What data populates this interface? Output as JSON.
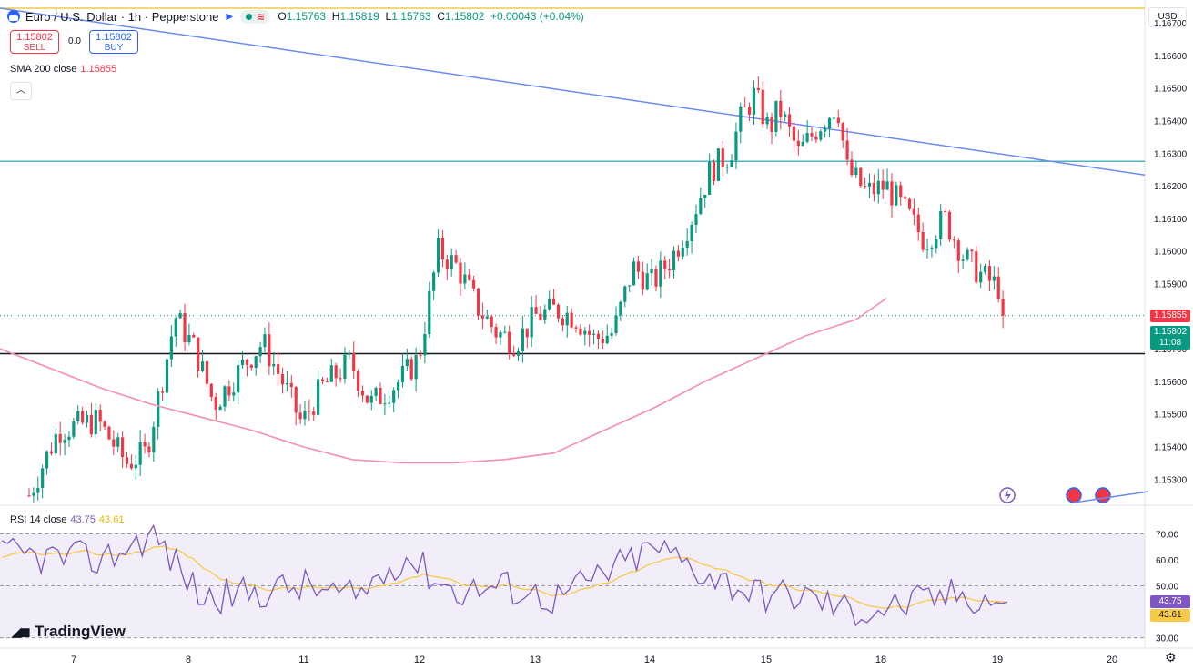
{
  "header": {
    "title": "Euro / U.S. Dollar · 1h · Pepperstone",
    "ohlc": {
      "o_label": "O",
      "o": "1.15763",
      "h_label": "H",
      "h": "1.15819",
      "l_label": "L",
      "l": "1.15763",
      "c_label": "C",
      "c": "1.15802",
      "change": "+0.00043 (+0.04%)"
    }
  },
  "trade": {
    "sell_price": "1.15802",
    "sell_label": "SELL",
    "spread": "0.0",
    "buy_price": "1.15802",
    "buy_label": "BUY"
  },
  "sma": {
    "label": "SMA 200 close",
    "value": "1.15855"
  },
  "rsi": {
    "label": "RSI 14 close",
    "value": "43.75",
    "ma_value": "43.61"
  },
  "currency": "USD",
  "brand": "TradingView",
  "price_tags": {
    "sma": "1.15855",
    "last": "1.15802",
    "countdown": "11:08",
    "rsi": "43.75",
    "rsi_ma": "43.61"
  },
  "colors": {
    "up": "#089981",
    "down": "#f23645",
    "sma": "#f48fb1",
    "rsi": "#7e57c2",
    "rsi_ma": "#f7c948",
    "trendline": "#6b8af0",
    "resistance": "#4fb3bf",
    "support": "#131722",
    "gold": "#f2c94c"
  },
  "chart_data": {
    "type": "candlestick",
    "price_axis": {
      "ticks": [
        1.153,
        1.154,
        1.155,
        1.156,
        1.157,
        1.158,
        1.159,
        1.16,
        1.161,
        1.162,
        1.163,
        1.164,
        1.165,
        1.166,
        1.167
      ],
      "tick_labels": [
        "1.15300",
        "1.15400",
        "1.15500",
        "1.15600",
        "1.15700",
        "1.15800",
        "1.15900",
        "1.16000",
        "1.16100",
        "1.16200",
        "1.16300",
        "1.16400",
        "1.16500",
        "1.16600",
        "1.16700"
      ],
      "range": [
        1.1522,
        1.1677
      ]
    },
    "time_axis": {
      "ticks": [
        7,
        8,
        11,
        12,
        13,
        14,
        15,
        18,
        19,
        20
      ],
      "tick_labels": [
        "7",
        "8",
        "11",
        "12",
        "13",
        "14",
        "15",
        "18",
        "19",
        "20"
      ]
    },
    "rsi_axis": {
      "ticks": [
        30,
        40,
        50,
        60,
        70
      ],
      "tick_labels": [
        "30.00",
        "40.00",
        "50.00",
        "60.00",
        "70.00"
      ],
      "bands": [
        30,
        50,
        70
      ],
      "range": [
        26,
        80
      ]
    },
    "levels": {
      "resistance": 1.16275,
      "support": 1.15685,
      "gold": 1.16745
    },
    "trendline": [
      [
        0.0,
        1.16745
      ],
      [
        1.0,
        1.16233
      ]
    ],
    "sma_line": [
      [
        0,
        1.157
      ],
      [
        0.05,
        1.1564
      ],
      [
        0.1,
        1.1558
      ],
      [
        0.15,
        1.1553
      ],
      [
        0.2,
        1.1549
      ],
      [
        0.25,
        1.1545
      ],
      [
        0.3,
        1.154
      ],
      [
        0.35,
        1.1536
      ],
      [
        0.4,
        1.1535
      ],
      [
        0.45,
        1.1535
      ],
      [
        0.5,
        1.1536
      ],
      [
        0.55,
        1.1538
      ],
      [
        0.6,
        1.1545
      ],
      [
        0.65,
        1.1552
      ],
      [
        0.7,
        1.156
      ],
      [
        0.75,
        1.1567
      ],
      [
        0.8,
        1.1574
      ],
      [
        0.85,
        1.1579
      ],
      [
        0.88,
        1.15855
      ]
    ],
    "candles": [],
    "rsi_series": [],
    "rsi_ma_series": []
  }
}
